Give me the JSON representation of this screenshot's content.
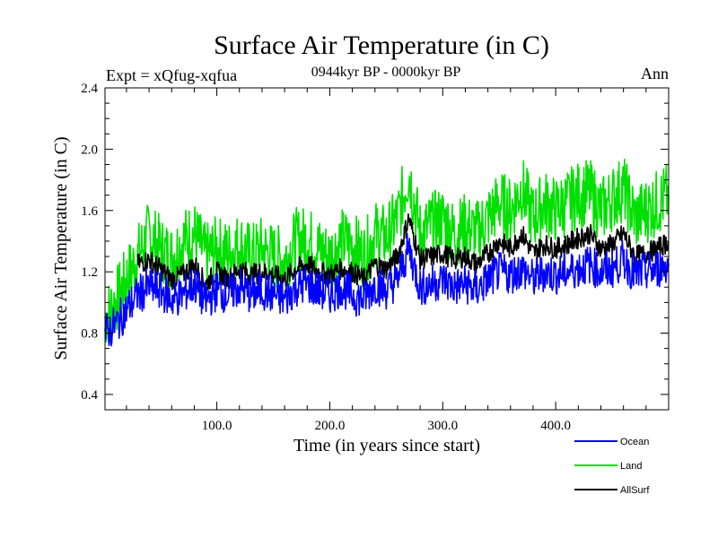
{
  "chart_data": {
    "type": "line",
    "title": "Surface Air Temperature (in C)",
    "subtitle": "0944kyr BP - 0000kyr BP",
    "expt_label": "Expt = xQfug-xqfua",
    "season_label": "Ann",
    "xlabel": "Time (in years since start)",
    "ylabel": "Surface Air Temperature (in C)",
    "xlim": [
      1,
      500
    ],
    "ylim": [
      0.3,
      2.4
    ],
    "xticks": [
      100,
      200,
      300,
      400
    ],
    "xtick_labels": [
      "100.0",
      "200.0",
      "300.0",
      "400.0"
    ],
    "yticks": [
      0.4,
      0.8,
      1.2,
      1.6,
      2.0,
      2.4
    ],
    "ytick_labels": [
      "0.4",
      "0.8",
      "1.2",
      "1.6",
      "2.0",
      "2.4"
    ],
    "grid": false,
    "legend_position": "bottom-right",
    "series": [
      {
        "name": "Ocean",
        "color": "#0000ff",
        "x": [
          1,
          10,
          20,
          30,
          40,
          50,
          60,
          70,
          80,
          90,
          100,
          110,
          120,
          130,
          140,
          150,
          160,
          170,
          180,
          190,
          200,
          210,
          220,
          230,
          240,
          250,
          260,
          270,
          280,
          290,
          300,
          310,
          320,
          330,
          340,
          350,
          360,
          370,
          380,
          390,
          400,
          410,
          420,
          430,
          440,
          450,
          460,
          470,
          480,
          490,
          500
        ],
        "values": [
          0.8,
          0.85,
          0.95,
          1.05,
          1.1,
          1.08,
          1.02,
          1.05,
          1.12,
          1.0,
          1.08,
          1.05,
          1.1,
          1.05,
          1.08,
          1.05,
          1.02,
          1.1,
          1.12,
          1.08,
          1.05,
          1.1,
          1.05,
          1.02,
          1.12,
          1.08,
          1.15,
          1.35,
          1.1,
          1.12,
          1.15,
          1.1,
          1.12,
          1.08,
          1.15,
          1.2,
          1.18,
          1.22,
          1.15,
          1.2,
          1.18,
          1.2,
          1.22,
          1.25,
          1.2,
          1.22,
          1.28,
          1.18,
          1.2,
          1.22,
          1.25
        ]
      },
      {
        "name": "Land",
        "color": "#00e000",
        "x": [
          1,
          10,
          20,
          30,
          40,
          50,
          60,
          70,
          80,
          90,
          100,
          110,
          120,
          130,
          140,
          150,
          160,
          170,
          180,
          190,
          200,
          210,
          220,
          230,
          240,
          250,
          260,
          270,
          280,
          290,
          300,
          310,
          320,
          330,
          340,
          350,
          360,
          370,
          380,
          390,
          400,
          410,
          420,
          430,
          440,
          450,
          460,
          470,
          480,
          490,
          500
        ],
        "values": [
          0.9,
          1.0,
          1.15,
          1.3,
          1.45,
          1.35,
          1.3,
          1.4,
          1.45,
          1.3,
          1.35,
          1.32,
          1.38,
          1.3,
          1.35,
          1.3,
          1.28,
          1.4,
          1.42,
          1.35,
          1.3,
          1.4,
          1.38,
          1.3,
          1.45,
          1.42,
          1.55,
          1.85,
          1.45,
          1.5,
          1.55,
          1.45,
          1.5,
          1.45,
          1.55,
          1.65,
          1.6,
          1.75,
          1.55,
          1.65,
          1.6,
          1.65,
          1.7,
          1.72,
          1.6,
          1.68,
          1.75,
          1.55,
          1.6,
          1.65,
          1.7
        ]
      },
      {
        "name": "AllSurf",
        "color": "#000000",
        "x": [
          30,
          40,
          50,
          60,
          70,
          80,
          90,
          100,
          110,
          120,
          130,
          140,
          150,
          160,
          170,
          180,
          190,
          200,
          210,
          220,
          230,
          240,
          250,
          260,
          270,
          280,
          290,
          300,
          310,
          320,
          330,
          340,
          350,
          360,
          370,
          380,
          390,
          400,
          410,
          420,
          430,
          440,
          450,
          460,
          470,
          480,
          490,
          500
        ],
        "values": [
          1.25,
          1.28,
          1.22,
          1.15,
          1.18,
          1.25,
          1.12,
          1.2,
          1.15,
          1.22,
          1.18,
          1.2,
          1.18,
          1.15,
          1.22,
          1.25,
          1.2,
          1.18,
          1.22,
          1.2,
          1.15,
          1.25,
          1.22,
          1.3,
          1.55,
          1.28,
          1.3,
          1.32,
          1.28,
          1.3,
          1.25,
          1.32,
          1.4,
          1.35,
          1.45,
          1.32,
          1.38,
          1.35,
          1.38,
          1.42,
          1.45,
          1.35,
          1.38,
          1.45,
          1.3,
          1.32,
          1.35,
          1.4
        ]
      }
    ]
  }
}
